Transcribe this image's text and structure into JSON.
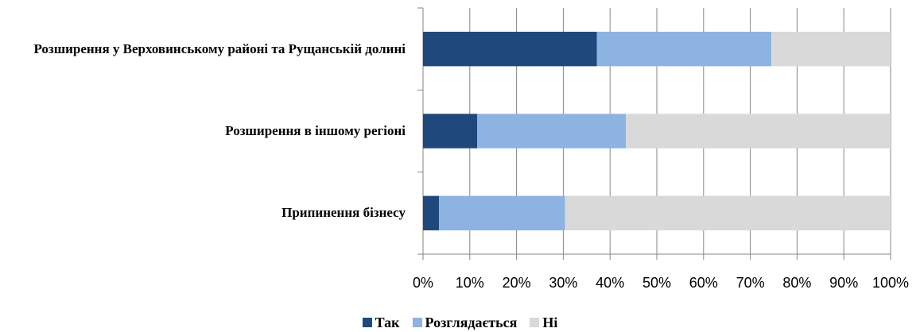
{
  "chart_data": {
    "type": "stacked_barh",
    "categories": [
      "Розширення у Верховинському районі та Рущанській долині",
      "Розширення в іншому регіоні",
      "Припинення бізнесу"
    ],
    "series": [
      {
        "name": "Так",
        "color": "#1f497d",
        "values": [
          37.2,
          11.6,
          3.4
        ]
      },
      {
        "name": "Розглядається",
        "color": "#8db3e2",
        "values": [
          37.3,
          31.8,
          27.0
        ]
      },
      {
        "name": "Ні",
        "color": "#d9d9d9",
        "values": [
          25.5,
          56.6,
          69.6
        ]
      }
    ],
    "xlim": [
      0,
      100
    ],
    "xticks": [
      {
        "value": 0,
        "label": "0%"
      },
      {
        "value": 10,
        "label": "10%"
      },
      {
        "value": 20,
        "label": "20%"
      },
      {
        "value": 30,
        "label": "30%"
      },
      {
        "value": 40,
        "label": "40%"
      },
      {
        "value": 50,
        "label": "50%"
      },
      {
        "value": 60,
        "label": "60%"
      },
      {
        "value": 70,
        "label": "70%"
      },
      {
        "value": 80,
        "label": "80%"
      },
      {
        "value": 90,
        "label": "90%"
      },
      {
        "value": 100,
        "label": "100%"
      }
    ],
    "grid": true,
    "legend": "bottom"
  }
}
